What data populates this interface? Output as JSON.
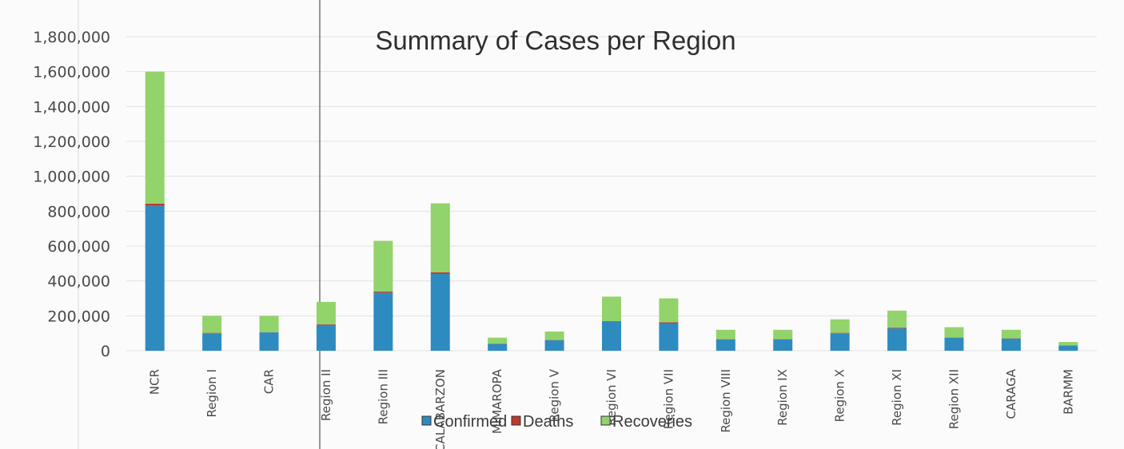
{
  "chart_data": {
    "type": "bar",
    "stacked": true,
    "title": "Summary of Cases per Region",
    "xlabel": "",
    "ylabel": "",
    "ylim": [
      0,
      1800000
    ],
    "yticks": [
      "0",
      "200,000",
      "400,000",
      "600,000",
      "800,000",
      "1,000,000",
      "1,200,000",
      "1,400,000",
      "1,600,000",
      "1,800,000"
    ],
    "categories": [
      "NCR",
      "Region I",
      "CAR",
      "Region II",
      "Region III",
      "CALABARZON",
      "MIMAROPA",
      "Region V",
      "Region VI",
      "Region VII",
      "Region VIII",
      "Region IX",
      "Region X",
      "Region XI",
      "Region XII",
      "CARAGA",
      "BARMM"
    ],
    "series": [
      {
        "name": "Confirmed",
        "color": "#2e8bc0",
        "values": [
          830000,
          100000,
          105000,
          148000,
          333000,
          440000,
          40000,
          60000,
          165000,
          158000,
          65000,
          65000,
          100000,
          128000,
          75000,
          70000,
          30000
        ]
      },
      {
        "name": "Deaths",
        "color": "#c0392b",
        "values": [
          13000,
          2500,
          1500,
          4000,
          6000,
          10000,
          700,
          1500,
          4000,
          5000,
          1200,
          1500,
          2500,
          4000,
          1500,
          1000,
          500
        ]
      },
      {
        "name": "Recoveries",
        "color": "#93d36b",
        "values": [
          757000,
          97500,
          93500,
          128000,
          291000,
          395000,
          34300,
          48500,
          141000,
          137000,
          53800,
          53500,
          77500,
          98000,
          58500,
          49000,
          19500
        ]
      }
    ],
    "grid": true,
    "legend_position": "bottom"
  }
}
